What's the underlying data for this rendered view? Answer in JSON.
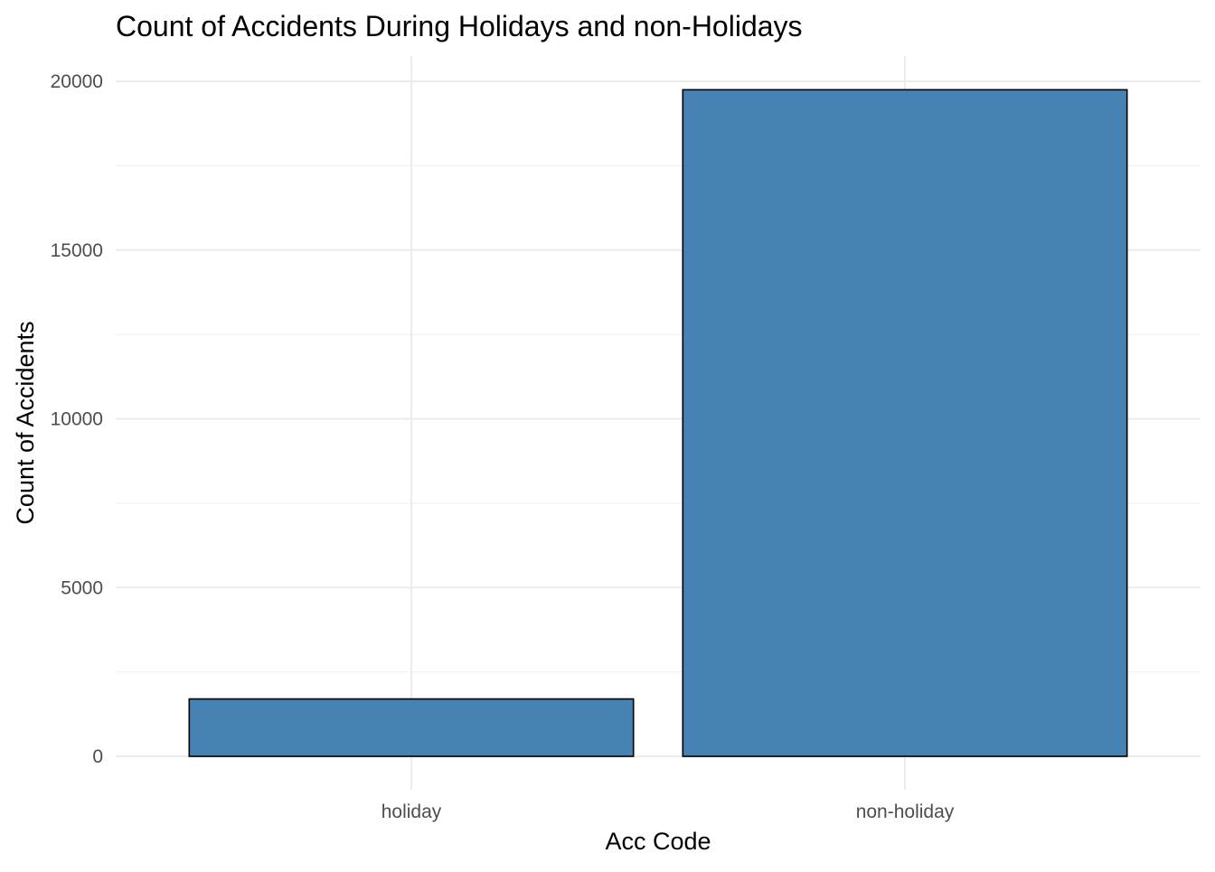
{
  "chart_data": {
    "type": "bar",
    "title": "Count of Accidents During Holidays and non-Holidays",
    "xlabel": "Acc Code",
    "ylabel": "Count of Accidents",
    "categories": [
      "holiday",
      "non-holiday"
    ],
    "values": [
      1700,
      19750
    ],
    "ylim": [
      0,
      20000
    ],
    "yticks": [
      0,
      5000,
      10000,
      15000,
      20000
    ],
    "ytick_labels": [
      "0",
      "5000",
      "10000",
      "15000",
      "20000"
    ],
    "grid": true,
    "legend": "none",
    "colors": {
      "bar_fill": "#4682b4",
      "bar_stroke": "#000000",
      "grid": "#ebebeb",
      "tick_text": "#4d4d4d",
      "text": "#000000",
      "background": "#ffffff"
    }
  }
}
